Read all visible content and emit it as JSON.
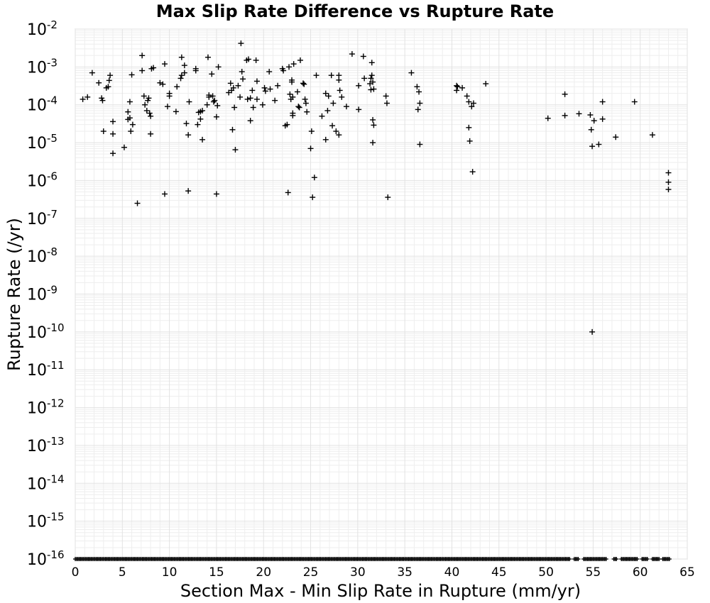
{
  "chart_data": {
    "type": "scatter",
    "title": "Max Slip Rate Difference vs Rupture Rate",
    "xlabel": "Section Max - Min Slip Rate in Rupture (mm/yr)",
    "ylabel": "Rupture Rate (/yr)",
    "xlim": [
      0,
      65
    ],
    "ylim": [
      1e-16,
      0.01
    ],
    "yscale": "log",
    "grid": true,
    "marker": "plus",
    "marker_color": "#000000",
    "x_ticks": [
      "0",
      "5",
      "10",
      "15",
      "20",
      "25",
      "30",
      "35",
      "40",
      "45",
      "50",
      "55",
      "60",
      "65"
    ],
    "y_ticks": [
      {
        "base": "10",
        "exp": "-2"
      },
      {
        "base": "10",
        "exp": "-3"
      },
      {
        "base": "10",
        "exp": "-4"
      },
      {
        "base": "10",
        "exp": "-5"
      },
      {
        "base": "10",
        "exp": "-6"
      },
      {
        "base": "10",
        "exp": "-7"
      },
      {
        "base": "10",
        "exp": "-8"
      },
      {
        "base": "10",
        "exp": "-9"
      },
      {
        "base": "10",
        "exp": "-10"
      },
      {
        "base": "10",
        "exp": "-11"
      },
      {
        "base": "10",
        "exp": "-12"
      },
      {
        "base": "10",
        "exp": "-13"
      },
      {
        "base": "10",
        "exp": "-14"
      },
      {
        "base": "10",
        "exp": "-15"
      },
      {
        "base": "10",
        "exp": "-16"
      }
    ],
    "points": [
      [
        0.8,
        0.00014
      ],
      [
        1.3,
        0.00016
      ],
      [
        1.8,
        0.0007
      ],
      [
        2.5,
        0.00038
      ],
      [
        2.8,
        0.00015
      ],
      [
        2.9,
        0.00013
      ],
      [
        3.0,
        2e-05
      ],
      [
        3.3,
        0.00028
      ],
      [
        3.5,
        0.0003
      ],
      [
        3.6,
        0.00044
      ],
      [
        3.7,
        0.0006
      ],
      [
        4.0,
        3.6e-05
      ],
      [
        4.0,
        1.7e-05
      ],
      [
        4.0,
        5.2e-06
      ],
      [
        5.2,
        7.5e-06
      ],
      [
        5.6,
        6.5e-05
      ],
      [
        5.6,
        4.1e-05
      ],
      [
        5.8,
        4.5e-05
      ],
      [
        5.8,
        0.00012
      ],
      [
        5.9,
        2e-05
      ],
      [
        6.0,
        0.00062
      ],
      [
        6.1,
        3e-05
      ],
      [
        6.6,
        2.5e-07
      ],
      [
        7.1,
        0.002
      ],
      [
        7.1,
        0.0008
      ],
      [
        7.3,
        0.00017
      ],
      [
        7.4,
        0.0001
      ],
      [
        7.6,
        7e-05
      ],
      [
        7.7,
        0.00013
      ],
      [
        7.8,
        0.00015
      ],
      [
        7.9,
        6e-05
      ],
      [
        8.0,
        1.7e-05
      ],
      [
        8.0,
        5e-05
      ],
      [
        8.3,
        0.00095
      ],
      [
        8.1,
        0.0009
      ],
      [
        9.0,
        0.00038
      ],
      [
        9.3,
        0.00035
      ],
      [
        9.5,
        0.0012
      ],
      [
        9.5,
        4.4e-07
      ],
      [
        9.8,
        9e-05
      ],
      [
        10.0,
        0.00017
      ],
      [
        10.0,
        0.0002
      ],
      [
        10.7,
        6.6e-05
      ],
      [
        10.8,
        0.0003
      ],
      [
        11.2,
        0.0005
      ],
      [
        11.3,
        0.0006
      ],
      [
        11.3,
        0.0018
      ],
      [
        11.6,
        0.0007
      ],
      [
        11.6,
        0.0011
      ],
      [
        11.8,
        3.2e-05
      ],
      [
        12.0,
        1.6e-05
      ],
      [
        12.0,
        5.3e-07
      ],
      [
        12.1,
        0.00012
      ],
      [
        12.8,
        0.0008
      ],
      [
        12.8,
        0.0009
      ],
      [
        13.0,
        3e-05
      ],
      [
        13.1,
        6.3e-05
      ],
      [
        13.3,
        4.2e-05
      ],
      [
        13.3,
        6.6e-05
      ],
      [
        13.5,
        1.2e-05
      ],
      [
        13.5,
        7e-05
      ],
      [
        14.0,
        0.0001
      ],
      [
        14.1,
        0.0018
      ],
      [
        14.2,
        0.00018
      ],
      [
        14.2,
        0.00016
      ],
      [
        14.5,
        0.00065
      ],
      [
        14.6,
        0.00017
      ],
      [
        14.7,
        0.00012
      ],
      [
        14.8,
        0.00013
      ],
      [
        15.0,
        4.8e-05
      ],
      [
        15.0,
        4.4e-07
      ],
      [
        15.1,
        9.5e-05
      ],
      [
        15.2,
        0.001
      ],
      [
        16.3,
        0.00021
      ],
      [
        16.5,
        0.00037
      ],
      [
        16.6,
        0.00024
      ],
      [
        16.7,
        2.2e-05
      ],
      [
        16.8,
        0.00028
      ],
      [
        16.9,
        8.5e-05
      ],
      [
        17.0,
        6.5e-06
      ],
      [
        17.3,
        0.00032
      ],
      [
        17.5,
        0.00016
      ],
      [
        17.6,
        0.0042
      ],
      [
        17.7,
        0.00075
      ],
      [
        17.8,
        0.00048
      ],
      [
        18.2,
        0.0015
      ],
      [
        18.3,
        0.00014
      ],
      [
        18.4,
        0.0016
      ],
      [
        18.6,
        0.00015
      ],
      [
        18.6,
        3.8e-05
      ],
      [
        18.8,
        0.00024
      ],
      [
        18.9,
        8.5e-05
      ],
      [
        19.2,
        0.0015
      ],
      [
        19.3,
        0.00042
      ],
      [
        19.3,
        0.00014
      ],
      [
        19.9,
        0.0001
      ],
      [
        20.1,
        0.00028
      ],
      [
        20.2,
        0.00023
      ],
      [
        20.6,
        0.00075
      ],
      [
        20.7,
        0.00026
      ],
      [
        21.2,
        0.00013
      ],
      [
        21.5,
        0.00032
      ],
      [
        22.0,
        0.0009
      ],
      [
        22.1,
        0.0008
      ],
      [
        22.3,
        2.8e-05
      ],
      [
        22.5,
        3e-05
      ],
      [
        22.6,
        4.8e-07
      ],
      [
        22.7,
        0.001
      ],
      [
        22.8,
        0.00019
      ],
      [
        22.9,
        0.00014
      ],
      [
        23.0,
        0.00045
      ],
      [
        23.0,
        0.0004
      ],
      [
        23.1,
        0.00016
      ],
      [
        23.1,
        5.2e-05
      ],
      [
        23.1,
        6e-05
      ],
      [
        23.2,
        0.0012
      ],
      [
        23.6,
        0.00022
      ],
      [
        23.7,
        9e-05
      ],
      [
        23.8,
        8.5e-05
      ],
      [
        23.9,
        0.0015
      ],
      [
        24.2,
        0.00037
      ],
      [
        24.3,
        0.00035
      ],
      [
        24.4,
        0.00014
      ],
      [
        24.5,
        0.00011
      ],
      [
        24.6,
        6.5e-05
      ],
      [
        25.0,
        7e-06
      ],
      [
        25.1,
        2e-05
      ],
      [
        25.2,
        3.6e-07
      ],
      [
        25.4,
        1.2e-06
      ],
      [
        25.6,
        0.0006
      ],
      [
        26.2,
        5e-05
      ],
      [
        26.6,
        0.0002
      ],
      [
        26.6,
        1.2e-05
      ],
      [
        26.8,
        7e-05
      ],
      [
        26.9,
        0.00017
      ],
      [
        27.2,
        0.0006
      ],
      [
        27.3,
        2.8e-05
      ],
      [
        27.4,
        0.00011
      ],
      [
        27.7,
        2e-05
      ],
      [
        28.0,
        0.0006
      ],
      [
        28.0,
        0.00045
      ],
      [
        28.0,
        1.6e-05
      ],
      [
        28.1,
        0.00024
      ],
      [
        28.3,
        0.00016
      ],
      [
        28.8,
        9e-05
      ],
      [
        29.4,
        0.0022
      ],
      [
        30.1,
        0.00032
      ],
      [
        30.1,
        7.5e-05
      ],
      [
        30.6,
        0.0019
      ],
      [
        30.7,
        0.0005
      ],
      [
        31.3,
        0.00036
      ],
      [
        31.4,
        0.00025
      ],
      [
        31.4,
        0.0005
      ],
      [
        31.5,
        0.0013
      ],
      [
        31.5,
        0.0006
      ],
      [
        31.6,
        0.0004
      ],
      [
        31.6,
        4e-05
      ],
      [
        31.6,
        1e-05
      ],
      [
        31.7,
        0.00026
      ],
      [
        31.7,
        2.9e-05
      ],
      [
        33.0,
        0.00017
      ],
      [
        33.1,
        0.00011
      ],
      [
        33.2,
        3.6e-07
      ],
      [
        35.7,
        0.0007
      ],
      [
        36.3,
        0.0003
      ],
      [
        36.4,
        7.5e-05
      ],
      [
        36.5,
        0.00022
      ],
      [
        36.6,
        0.00011
      ],
      [
        36.6,
        9e-06
      ],
      [
        40.5,
        0.00032
      ],
      [
        40.5,
        0.00024
      ],
      [
        40.6,
        0.0003
      ],
      [
        41.1,
        0.00028
      ],
      [
        41.6,
        0.00017
      ],
      [
        41.8,
        0.00012
      ],
      [
        41.8,
        2.5e-05
      ],
      [
        41.9,
        1.1e-05
      ],
      [
        42.1,
        9e-05
      ],
      [
        42.2,
        1.7e-06
      ],
      [
        42.3,
        0.00011
      ],
      [
        43.6,
        0.00036
      ],
      [
        50.2,
        4.4e-05
      ],
      [
        52.0,
        0.00019
      ],
      [
        52.0,
        5.2e-05
      ],
      [
        53.5,
        5.8e-05
      ],
      [
        54.7,
        5.4e-05
      ],
      [
        54.8,
        2.2e-05
      ],
      [
        54.9,
        8e-06
      ],
      [
        54.9,
        1e-10
      ],
      [
        55.1,
        3.8e-05
      ],
      [
        55.6,
        9e-06
      ],
      [
        56.0,
        0.00012
      ],
      [
        56.0,
        4.2e-05
      ],
      [
        57.4,
        1.4e-05
      ],
      [
        59.4,
        0.00012
      ],
      [
        61.3,
        1.6e-05
      ],
      [
        63.0,
        1.6e-06
      ],
      [
        63.0,
        9e-07
      ],
      [
        63.0,
        5.8e-07
      ]
    ],
    "floor_value": 1e-16,
    "floor_x_segments": [
      [
        0.0,
        52.6
      ],
      [
        53.0,
        53.5
      ],
      [
        54.0,
        56.5
      ],
      [
        57.2,
        57.6
      ],
      [
        58.0,
        59.8
      ],
      [
        60.2,
        60.8
      ],
      [
        61.3,
        62.0
      ],
      [
        62.4,
        63.2
      ]
    ]
  }
}
